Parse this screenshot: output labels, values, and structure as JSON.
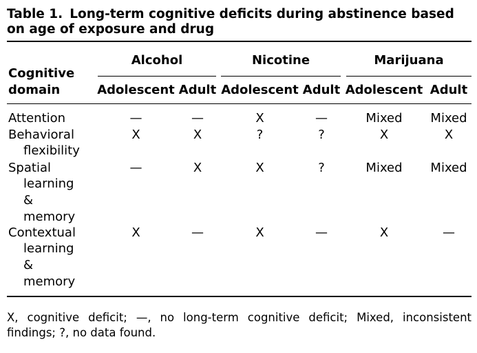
{
  "caption": {
    "label": "Table 1.",
    "text": "Long-term cognitive deficits during abstinence based on age of exposure and drug"
  },
  "header": {
    "row_label_line1": "Cognitive",
    "row_label_line2": "domain",
    "drugs": [
      "Alcohol",
      "Nicotine",
      "Marijuana"
    ],
    "ages": [
      "Adolescent",
      "Adult",
      "Adolescent",
      "Adult",
      "Adolescent",
      "Adult"
    ]
  },
  "rows": [
    {
      "domain": [
        "Attention"
      ],
      "values": [
        "—",
        "—",
        "X",
        "—",
        "Mixed",
        "Mixed"
      ]
    },
    {
      "domain": [
        "Behavioral",
        "flexibility"
      ],
      "values": [
        "X",
        "X",
        "?",
        "?",
        "X",
        "X"
      ]
    },
    {
      "domain": [
        "Spatial",
        "learning",
        "&",
        "memory"
      ],
      "values": [
        "—",
        "X",
        "X",
        "?",
        "Mixed",
        "Mixed"
      ]
    },
    {
      "domain": [
        "Contextual",
        "learning",
        "&",
        "memory"
      ],
      "values": [
        "X",
        "—",
        "X",
        "—",
        "X",
        "—"
      ]
    }
  ],
  "footnote": "X, cognitive deficit; —, no long-term cognitive deficit; Mixed, inconsistent findings; ?, no data found."
}
